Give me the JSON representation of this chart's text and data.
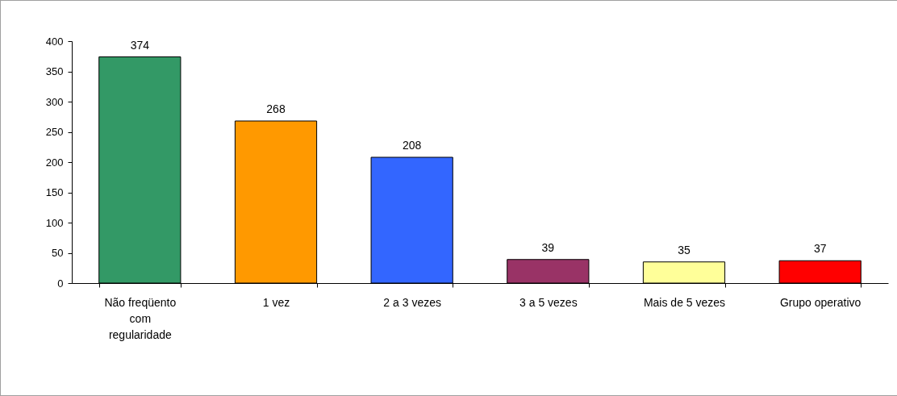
{
  "chart_data": {
    "type": "bar",
    "categories": [
      "Não freqüento com regularidade",
      "1 vez",
      "2 a 3 vezes",
      "3 a 5 vezes",
      "Mais de 5 vezes",
      "Grupo operativo"
    ],
    "values": [
      374,
      268,
      208,
      39,
      35,
      37
    ],
    "colors": [
      "#339966",
      "#ff9900",
      "#3366ff",
      "#993366",
      "#ffff99",
      "#ff0000"
    ],
    "ylim": [
      0,
      400
    ],
    "yticks": [
      0,
      50,
      100,
      150,
      200,
      250,
      300,
      350,
      400
    ],
    "data_labels": true,
    "grid": false
  }
}
